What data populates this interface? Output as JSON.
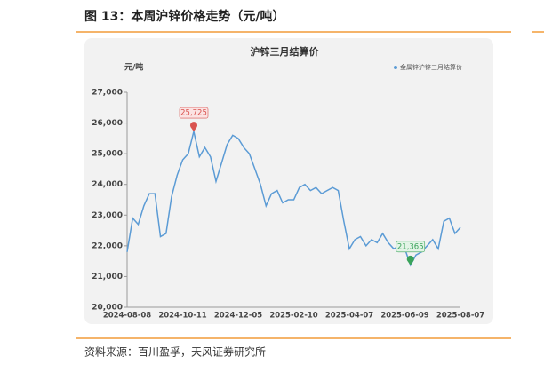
{
  "header": {
    "title": "图 13：本周沪锌价格走势（元/吨）"
  },
  "chart_data": {
    "type": "line",
    "title": "沪锌三月结算价",
    "y_label": "元/吨",
    "categories": [
      "2024-08-08",
      null,
      null,
      null,
      null,
      null,
      null,
      null,
      null,
      null,
      "2024-10-11",
      null,
      null,
      null,
      null,
      null,
      null,
      null,
      null,
      null,
      "2024-12-05",
      null,
      null,
      null,
      null,
      null,
      null,
      null,
      null,
      null,
      "2025-02-10",
      null,
      null,
      null,
      null,
      null,
      null,
      null,
      null,
      null,
      "2025-04-07",
      null,
      null,
      null,
      null,
      null,
      null,
      null,
      null,
      null,
      "2025-06-09",
      null,
      null,
      null,
      null,
      null,
      null,
      null,
      null,
      null,
      "2025-08-07"
    ],
    "series": [
      {
        "name": "金属锌沪锌三月结算价",
        "color": "#5b9bd5",
        "values": [
          21800,
          22900,
          22700,
          23300,
          23700,
          23700,
          22300,
          22400,
          23600,
          24300,
          24800,
          25000,
          25725,
          24900,
          25200,
          24900,
          24100,
          24700,
          25300,
          25600,
          25500,
          25200,
          25000,
          24500,
          24000,
          23300,
          23700,
          23800,
          23400,
          23500,
          23500,
          23900,
          24000,
          23800,
          23900,
          23700,
          23800,
          23900,
          23800,
          22800,
          21900,
          22200,
          22300,
          22000,
          22200,
          22100,
          22400,
          22100,
          21900,
          22000,
          21900,
          21365,
          21700,
          21800,
          22000,
          22200,
          21900,
          22800,
          22900,
          22400,
          22600
        ],
        "value_labels": [
          null,
          null,
          null,
          null,
          null,
          null,
          null,
          null,
          null,
          null,
          null,
          null,
          "25,725",
          null,
          null,
          null,
          null,
          null,
          null,
          null,
          null,
          null,
          null,
          null,
          null,
          null,
          null,
          null,
          null,
          null,
          null,
          null,
          null,
          null,
          null,
          null,
          null,
          null,
          null,
          null,
          null,
          null,
          null,
          null,
          null,
          null,
          null,
          null,
          null,
          null,
          null,
          "21,365",
          null,
          null,
          null,
          null,
          null,
          null,
          null,
          null,
          null
        ]
      }
    ],
    "ylim": [
      20000,
      27000
    ],
    "yticks": [
      {
        "value": 20000,
        "label": "20,000"
      },
      {
        "value": 21000,
        "label": "21,000"
      },
      {
        "value": 22000,
        "label": "22,000"
      },
      {
        "value": 23000,
        "label": "23,000"
      },
      {
        "value": 24000,
        "label": "24,000"
      },
      {
        "value": 25000,
        "label": "25,000"
      },
      {
        "value": 26000,
        "label": "26,000"
      },
      {
        "value": 27000,
        "label": "27,000"
      }
    ],
    "grid": false,
    "legend": "top-right"
  },
  "footer": {
    "source": "资料来源：百川盈孚，天风证券研究所"
  }
}
